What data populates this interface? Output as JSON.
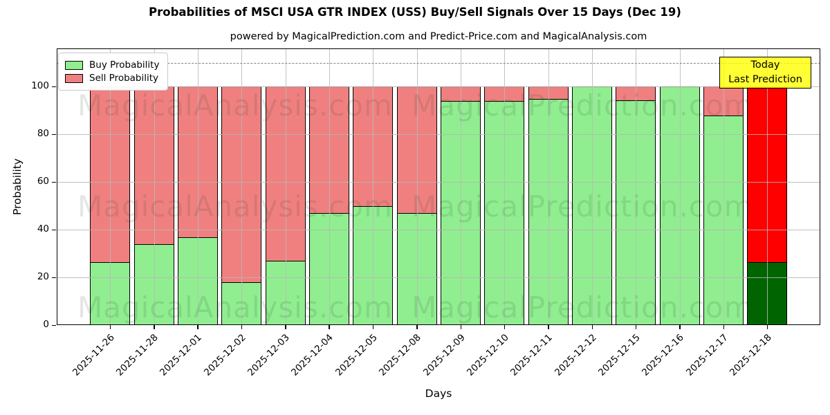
{
  "title": "Probabilities of MSCI USA GTR INDEX (USS) Buy/Sell Signals Over 15 Days (Dec 19)",
  "subtitle": "powered by MagicalPrediction.com and Predict-Price.com and MagicalAnalysis.com",
  "legend": {
    "buy_label": "Buy Probability",
    "sell_label": "Sell Probability"
  },
  "annotation": {
    "line1": "Today",
    "line2": "Last Prediction"
  },
  "watermark": {
    "left_text": "MagicalAnalysis.com",
    "right_text": "MagicalPrediction.com"
  },
  "axes": {
    "ylabel": "Probability",
    "xlabel": "Days"
  },
  "colors": {
    "buy": "#90ee90",
    "sell": "#f08080",
    "final_buy": "#006400",
    "final_sell": "#ff0000",
    "annotation_bg": "#ffff00",
    "edge": "#000000"
  },
  "chart_data": {
    "type": "bar",
    "stacked": true,
    "title": "Probabilities of MSCI USA GTR INDEX (USS) Buy/Sell Signals Over 15 Days (Dec 19)",
    "xlabel": "Days",
    "ylabel": "Probability",
    "categories": [
      "2025-11-26",
      "2025-11-28",
      "2025-12-01",
      "2025-12-02",
      "2025-12-03",
      "2025-12-04",
      "2025-12-05",
      "2025-12-08",
      "2025-12-09",
      "2025-12-10",
      "2025-12-11",
      "2025-12-12",
      "2025-12-15",
      "2025-12-16",
      "2025-12-17",
      "2025-12-18"
    ],
    "series": [
      {
        "name": "Buy Probability",
        "color": "#90ee90",
        "values": [
          26.5,
          34,
          37,
          18,
          27,
          47,
          50,
          47,
          94,
          94,
          95,
          100,
          94.5,
          100,
          88,
          26.5
        ]
      },
      {
        "name": "Sell Probability",
        "color": "#f08080",
        "values": [
          73.5,
          66,
          63,
          82,
          73,
          53,
          50,
          53,
          6,
          6,
          5,
          0,
          5.5,
          0,
          12,
          73.5
        ]
      }
    ],
    "last_bar_colors": {
      "buy": "#006400",
      "sell": "#ff0000"
    },
    "ylim": [
      0,
      116
    ],
    "yticks": [
      0,
      20,
      40,
      60,
      80,
      100
    ],
    "dashed_line_y": 110,
    "grid": true,
    "legend_position": "upper left"
  }
}
